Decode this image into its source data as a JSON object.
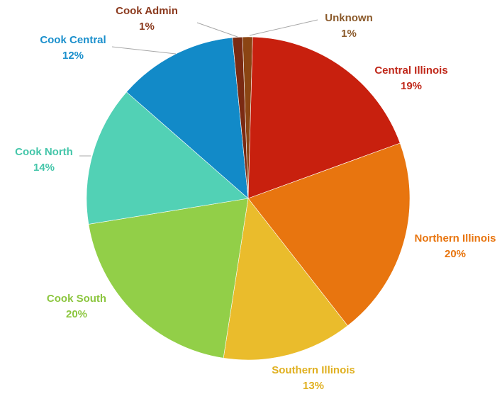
{
  "chart_data": {
    "type": "pie",
    "title": "",
    "legend": "none",
    "slices": [
      {
        "name": "Unknown",
        "value": 1,
        "label": "1%",
        "color": "#8B4513",
        "label_color": "#8B5A2B"
      },
      {
        "name": "Central Illinois",
        "value": 19,
        "label": "19%",
        "color": "#C8200E",
        "label_color": "#C0281A"
      },
      {
        "name": "Northern Illinois",
        "value": 20,
        "label": "20%",
        "color": "#E8750F",
        "label_color": "#E8750F"
      },
      {
        "name": "Southern Illinois",
        "value": 13,
        "label": "13%",
        "color": "#EABC2C",
        "label_color": "#E0B020"
      },
      {
        "name": "Cook South",
        "value": 20,
        "label": "20%",
        "color": "#92CF48",
        "label_color": "#8CC63F"
      },
      {
        "name": "Cook North",
        "value": 14,
        "label": "14%",
        "color": "#52D1B5",
        "label_color": "#45C6AA"
      },
      {
        "name": "Cook Central",
        "value": 12,
        "label": "12%",
        "color": "#128AC8",
        "label_color": "#1A8FCC"
      },
      {
        "name": "Cook Admin",
        "value": 1,
        "label": "1%",
        "color": "#7A2A12",
        "label_color": "#8B3A1E"
      }
    ]
  }
}
